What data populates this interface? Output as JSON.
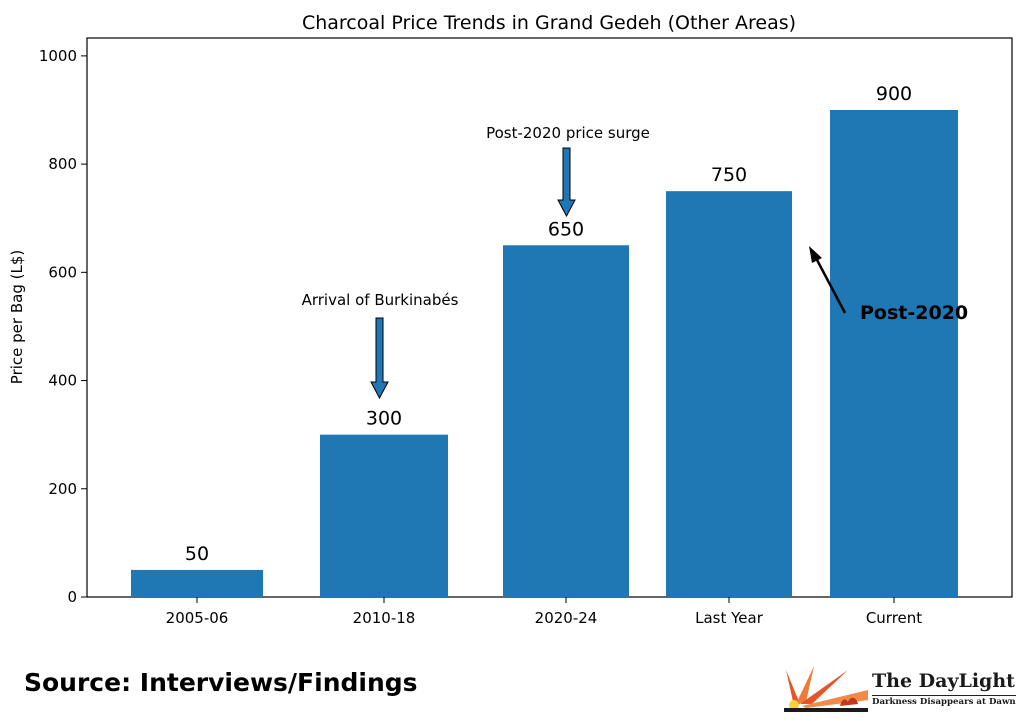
{
  "chart_data": {
    "type": "bar",
    "title": "Charcoal Price Trends in Grand Gedeh (Other Areas)",
    "xlabel": "",
    "ylabel": "Price per Bag (L$)",
    "categories": [
      "2005-06",
      "2010-18",
      "2020-24",
      "Last Year",
      "Current"
    ],
    "values": [
      50,
      300,
      650,
      750,
      900
    ],
    "data_labels": [
      "50",
      "300",
      "650",
      "750",
      "900"
    ],
    "ylim": [
      0,
      1000
    ],
    "yticks": [
      0,
      200,
      400,
      600,
      800,
      1000
    ],
    "grid": false,
    "bar_color": "#1f77b4",
    "annotations": [
      {
        "text": "Arrival of Burkinabés",
        "category": "2010-18",
        "style": "block-arrow-down"
      },
      {
        "text": "Post-2020 price surge",
        "category": "2020-24",
        "style": "block-arrow-down"
      },
      {
        "text": "Post-2020",
        "category": "Last Year",
        "style": "arrow-up-left",
        "bold": true
      }
    ]
  },
  "footer": {
    "source_text": "Source: Interviews/Findings",
    "logo_name": "The DayLight",
    "logo_tagline": "Darkness Disappears at Dawn"
  },
  "colors": {
    "bar": "#1f77b4",
    "logo_accent": "#e8542a"
  }
}
